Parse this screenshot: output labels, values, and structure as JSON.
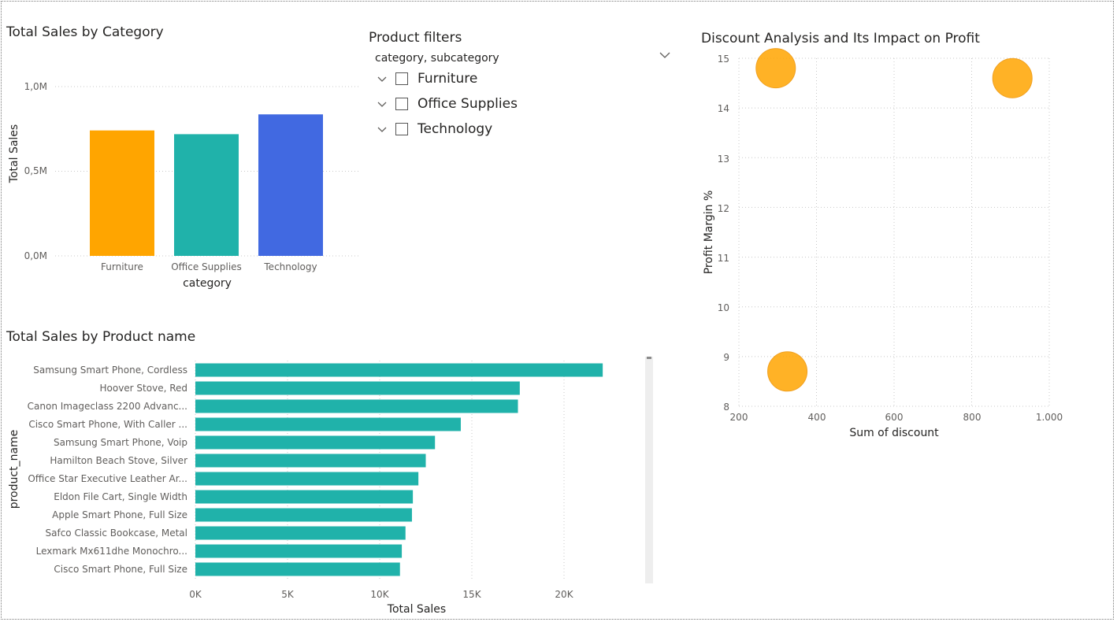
{
  "category_chart": {
    "title": "Total Sales by Category",
    "xlabel": "category",
    "ylabel": "Total Sales",
    "yticks": [
      "0,0M",
      "0,5M",
      "1,0M"
    ]
  },
  "slicer": {
    "title": "Product filters",
    "field": "category, subcategory",
    "items": [
      {
        "label": "Furniture",
        "checked": false
      },
      {
        "label": "Office Supplies",
        "checked": false
      },
      {
        "label": "Technology",
        "checked": false
      }
    ]
  },
  "product_chart": {
    "title": "Total Sales by Product name",
    "xlabel": "Total Sales",
    "ylabel": "product_name",
    "xticks": [
      "0K",
      "5K",
      "10K",
      "15K",
      "20K"
    ]
  },
  "scatter_chart": {
    "title": "Discount Analysis and Its Impact on Profit",
    "xlabel": "Sum of discount",
    "ylabel": "Profit Margin %",
    "xticks": [
      "200",
      "400",
      "600",
      "800",
      "1.000"
    ],
    "yticks": [
      "8",
      "9",
      "10",
      "11",
      "12",
      "13",
      "14",
      "15"
    ]
  },
  "chart_data": [
    {
      "type": "bar",
      "title": "Total Sales by Category",
      "xlabel": "category",
      "ylabel": "Total Sales",
      "categories": [
        "Furniture",
        "Office Supplies",
        "Technology"
      ],
      "values": [
        741000,
        719000,
        836000
      ],
      "colors": [
        "#FFA500",
        "#20B2AA",
        "#4169E1"
      ],
      "ylim": [
        0,
        1000000
      ],
      "grid": true
    },
    {
      "type": "bar",
      "orientation": "horizontal",
      "title": "Total Sales by Product name",
      "xlabel": "Total Sales",
      "ylabel": "product_name",
      "categories": [
        "Samsung Smart Phone, Cordless",
        "Hoover Stove, Red",
        "Canon Imageclass 2200 Advanc...",
        "Cisco Smart Phone, With Caller ...",
        "Samsung Smart Phone, Voip",
        "Hamilton Beach Stove, Silver",
        "Office Star Executive Leather Ar...",
        "Eldon File Cart, Single Width",
        "Apple Smart Phone, Full Size",
        "Safco Classic Bookcase, Metal",
        "Lexmark Mx611dhe Monochro...",
        "Cisco Smart Phone, Full Size"
      ],
      "values": [
        22100,
        17600,
        17500,
        14400,
        13000,
        12500,
        12100,
        11800,
        11750,
        11400,
        11200,
        11100
      ],
      "color": "#20B2AA",
      "xlim": [
        0,
        23000
      ],
      "grid": true
    },
    {
      "type": "scatter",
      "title": "Discount Analysis and Its Impact on Profit",
      "xlabel": "Sum of discount",
      "ylabel": "Profit Margin %",
      "points": [
        {
          "x": 295,
          "y": 14.8
        },
        {
          "x": 905,
          "y": 14.6
        },
        {
          "x": 325,
          "y": 8.7
        }
      ],
      "color": "#FFA500",
      "xlim": [
        200,
        1000
      ],
      "ylim": [
        8,
        15
      ],
      "grid": true
    }
  ]
}
